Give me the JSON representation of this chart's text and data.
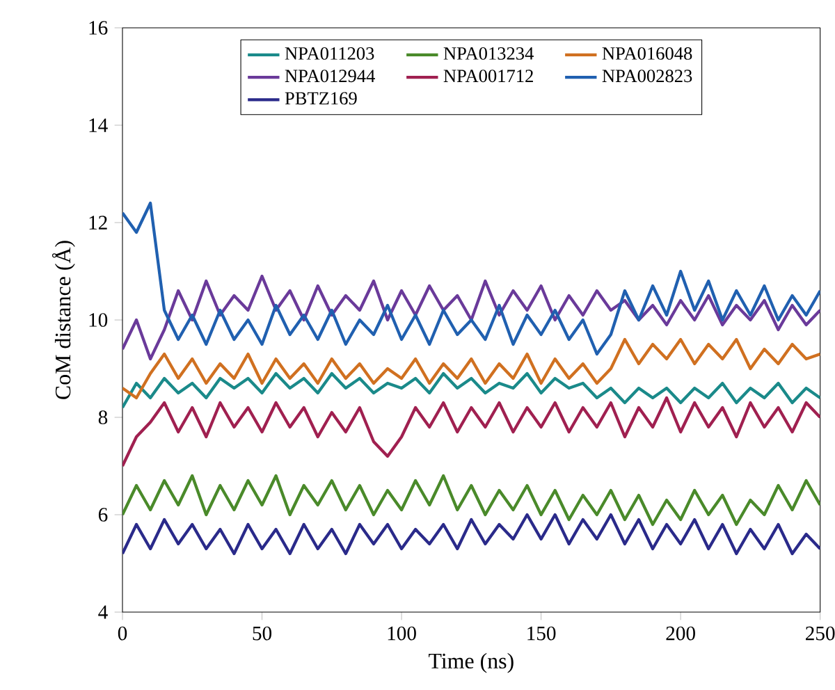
{
  "chart_data": {
    "type": "line",
    "xlabel": "Time (ns)",
    "ylabel": "CoM distance (Å)",
    "xlim": [
      0,
      250
    ],
    "ylim": [
      4,
      16
    ],
    "xticks": [
      0,
      50,
      100,
      150,
      200,
      250
    ],
    "yticks": [
      4,
      6,
      8,
      10,
      12,
      14,
      16
    ],
    "legend": "top",
    "x": [
      0,
      5,
      10,
      15,
      20,
      25,
      30,
      35,
      40,
      45,
      50,
      55,
      60,
      65,
      70,
      75,
      80,
      85,
      90,
      95,
      100,
      105,
      110,
      115,
      120,
      125,
      130,
      135,
      140,
      145,
      150,
      155,
      160,
      165,
      170,
      175,
      180,
      185,
      190,
      195,
      200,
      205,
      210,
      215,
      220,
      225,
      230,
      235,
      240,
      245,
      250
    ],
    "series": [
      {
        "name": "NPA011203",
        "color": "#1a8a8a",
        "values": [
          8.2,
          8.7,
          8.4,
          8.8,
          8.5,
          8.7,
          8.4,
          8.8,
          8.6,
          8.8,
          8.5,
          8.9,
          8.6,
          8.8,
          8.5,
          8.9,
          8.6,
          8.8,
          8.5,
          8.7,
          8.6,
          8.8,
          8.5,
          8.9,
          8.6,
          8.8,
          8.5,
          8.7,
          8.6,
          8.9,
          8.5,
          8.8,
          8.6,
          8.7,
          8.4,
          8.6,
          8.3,
          8.6,
          8.4,
          8.6,
          8.3,
          8.6,
          8.4,
          8.7,
          8.3,
          8.6,
          8.4,
          8.7,
          8.3,
          8.6,
          8.4
        ]
      },
      {
        "name": "NPA013234",
        "color": "#4a8a2a",
        "values": [
          6.0,
          6.6,
          6.1,
          6.7,
          6.2,
          6.8,
          6.0,
          6.6,
          6.1,
          6.7,
          6.2,
          6.8,
          6.0,
          6.6,
          6.2,
          6.7,
          6.1,
          6.6,
          6.0,
          6.5,
          6.1,
          6.7,
          6.2,
          6.8,
          6.1,
          6.6,
          6.0,
          6.5,
          6.1,
          6.6,
          6.0,
          6.5,
          5.9,
          6.4,
          6.0,
          6.5,
          5.9,
          6.4,
          5.8,
          6.3,
          5.9,
          6.5,
          6.0,
          6.4,
          5.8,
          6.3,
          6.0,
          6.6,
          6.1,
          6.7,
          6.2
        ]
      },
      {
        "name": "NPA016048",
        "color": "#d07020",
        "values": [
          8.6,
          8.4,
          8.9,
          9.3,
          8.8,
          9.2,
          8.7,
          9.1,
          8.8,
          9.3,
          8.7,
          9.2,
          8.8,
          9.1,
          8.7,
          9.2,
          8.8,
          9.1,
          8.7,
          9.0,
          8.8,
          9.2,
          8.7,
          9.1,
          8.8,
          9.2,
          8.7,
          9.1,
          8.8,
          9.3,
          8.7,
          9.2,
          8.8,
          9.1,
          8.7,
          9.0,
          9.6,
          9.1,
          9.5,
          9.2,
          9.6,
          9.1,
          9.5,
          9.2,
          9.6,
          9.0,
          9.4,
          9.1,
          9.5,
          9.2,
          9.3
        ]
      },
      {
        "name": "NPA012944",
        "color": "#6a3a9a",
        "values": [
          9.4,
          10.0,
          9.2,
          9.8,
          10.6,
          10.0,
          10.8,
          10.1,
          10.5,
          10.2,
          10.9,
          10.2,
          10.6,
          10.0,
          10.7,
          10.1,
          10.5,
          10.2,
          10.8,
          10.0,
          10.6,
          10.1,
          10.7,
          10.2,
          10.5,
          10.0,
          10.8,
          10.1,
          10.6,
          10.2,
          10.7,
          10.0,
          10.5,
          10.1,
          10.6,
          10.2,
          10.4,
          10.0,
          10.3,
          9.9,
          10.4,
          10.0,
          10.5,
          9.9,
          10.3,
          10.0,
          10.4,
          9.8,
          10.3,
          9.9,
          10.2
        ]
      },
      {
        "name": "NPA001712",
        "color": "#a02050",
        "values": [
          7.0,
          7.6,
          7.9,
          8.3,
          7.7,
          8.2,
          7.6,
          8.3,
          7.8,
          8.2,
          7.7,
          8.3,
          7.8,
          8.2,
          7.6,
          8.1,
          7.7,
          8.2,
          7.5,
          7.2,
          7.6,
          8.2,
          7.8,
          8.3,
          7.7,
          8.2,
          7.8,
          8.3,
          7.7,
          8.2,
          7.8,
          8.3,
          7.7,
          8.2,
          7.8,
          8.3,
          7.6,
          8.2,
          7.8,
          8.4,
          7.7,
          8.3,
          7.8,
          8.2,
          7.6,
          8.3,
          7.8,
          8.2,
          7.7,
          8.3,
          8.0
        ]
      },
      {
        "name": "NPA002823",
        "color": "#2060b0",
        "values": [
          12.2,
          11.8,
          12.4,
          10.2,
          9.6,
          10.1,
          9.5,
          10.2,
          9.6,
          10.0,
          9.5,
          10.3,
          9.7,
          10.1,
          9.6,
          10.2,
          9.5,
          10.0,
          9.7,
          10.3,
          9.6,
          10.1,
          9.5,
          10.2,
          9.7,
          10.0,
          9.6,
          10.3,
          9.5,
          10.1,
          9.7,
          10.2,
          9.6,
          10.0,
          9.3,
          9.7,
          10.6,
          10.0,
          10.7,
          10.1,
          11.0,
          10.2,
          10.8,
          10.0,
          10.6,
          10.1,
          10.7,
          10.0,
          10.5,
          10.1,
          10.6
        ]
      },
      {
        "name": "PBTZ169",
        "color": "#2a2a8a",
        "values": [
          5.2,
          5.8,
          5.3,
          5.9,
          5.4,
          5.8,
          5.3,
          5.7,
          5.2,
          5.8,
          5.3,
          5.7,
          5.2,
          5.8,
          5.3,
          5.7,
          5.2,
          5.8,
          5.4,
          5.8,
          5.3,
          5.7,
          5.4,
          5.8,
          5.3,
          5.9,
          5.4,
          5.8,
          5.5,
          6.0,
          5.5,
          6.0,
          5.4,
          5.9,
          5.5,
          6.0,
          5.4,
          5.9,
          5.3,
          5.8,
          5.4,
          5.9,
          5.3,
          5.8,
          5.2,
          5.7,
          5.3,
          5.8,
          5.2,
          5.6,
          5.3
        ]
      }
    ]
  }
}
